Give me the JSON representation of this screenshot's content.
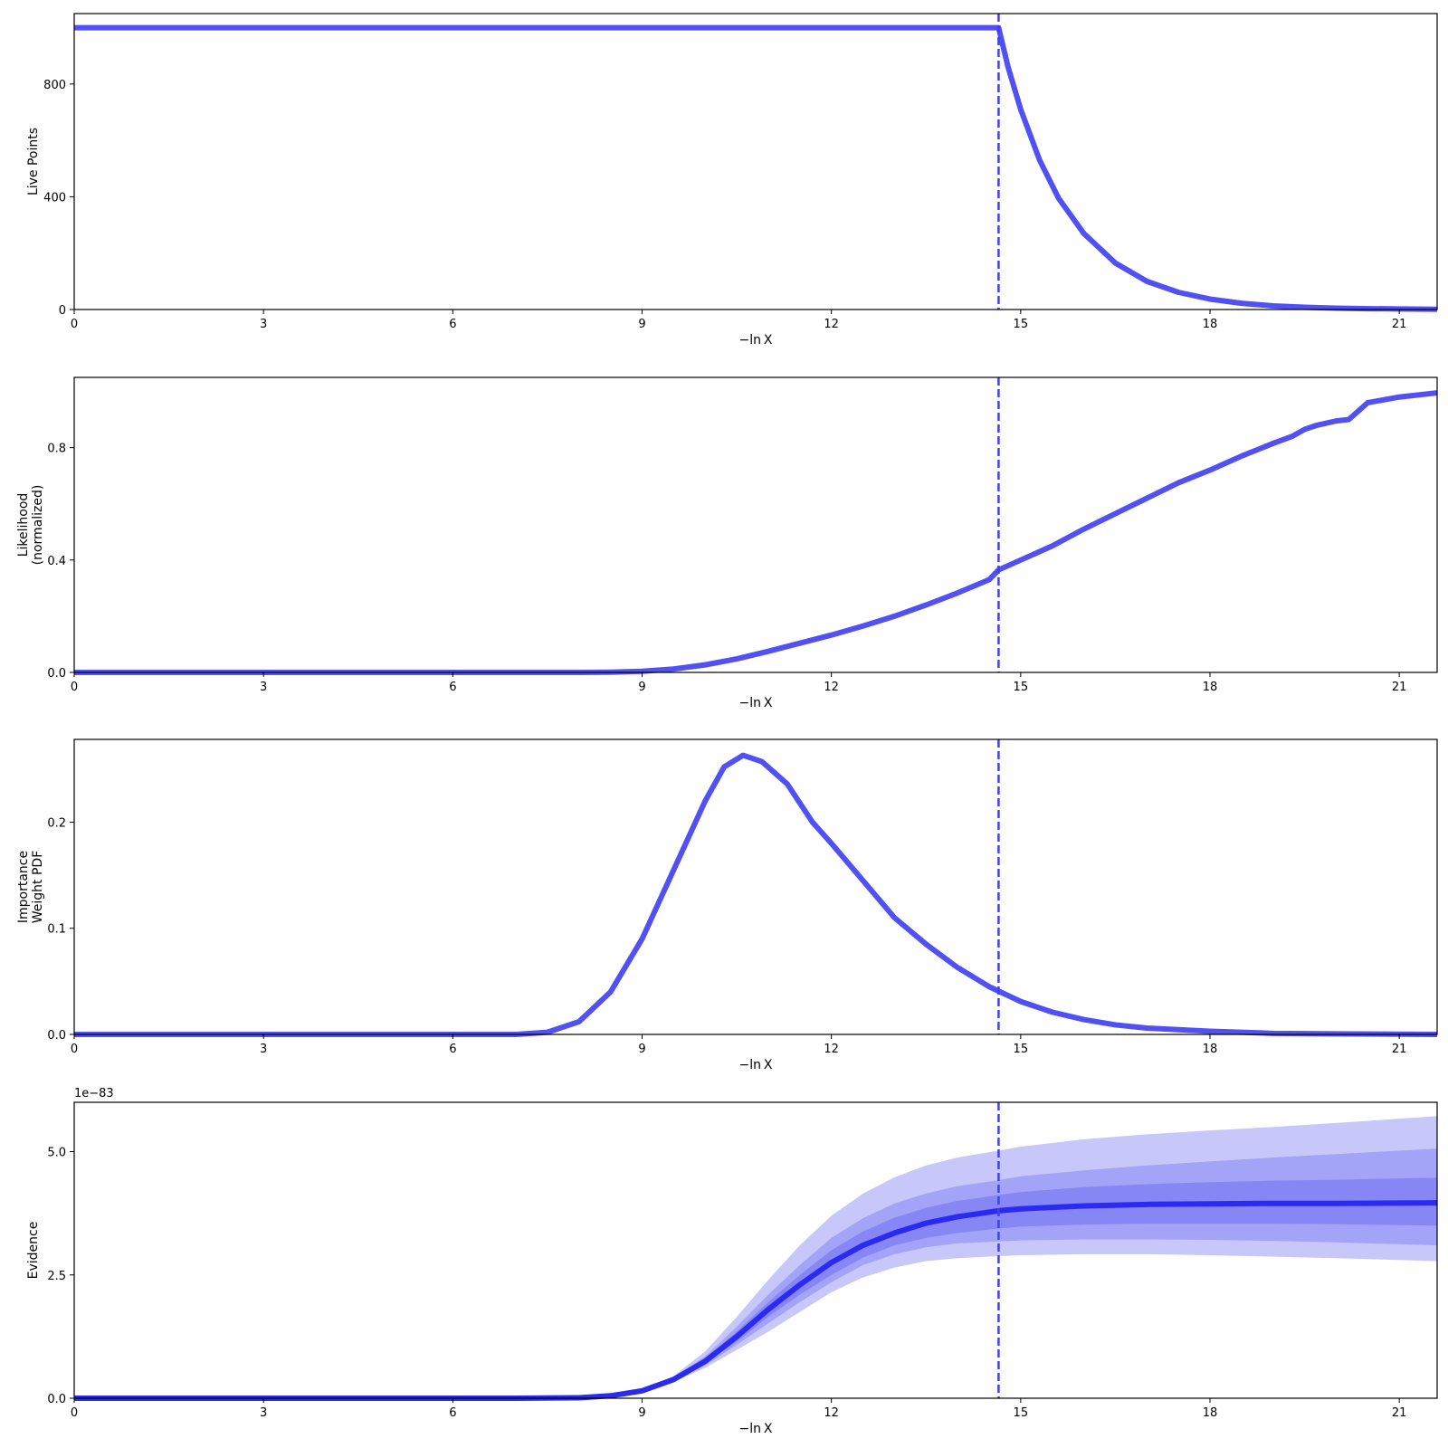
{
  "colors": {
    "line": "#5050f5",
    "vline": "#4040ee",
    "evidence_line": "#2a2af2",
    "band_1": "#c7c7fa",
    "band_2": "#a3a3f7",
    "band_3": "#8686f5"
  },
  "chart_data": [
    {
      "type": "line",
      "title": "",
      "xlabel": "−ln X",
      "ylabel": "Live Points",
      "xlim": [
        0,
        21.6
      ],
      "ylim": [
        0,
        1050
      ],
      "xticks": [
        0,
        3,
        6,
        9,
        12,
        15,
        18,
        21
      ],
      "xtick_labels": [
        "0",
        "3",
        "6",
        "9",
        "12",
        "15",
        "18",
        "21"
      ],
      "yticks": [
        0,
        400,
        800
      ],
      "ytick_labels": [
        "0",
        "400",
        "800"
      ],
      "vline_x": 14.65,
      "series": [
        {
          "x": [
            0,
            14.65,
            14.8,
            15.0,
            15.3,
            15.6,
            16.0,
            16.5,
            17.0,
            17.5,
            18.0,
            18.5,
            19.0,
            19.5,
            20.0,
            20.5,
            21.0,
            21.6
          ],
          "y": [
            1000,
            1000,
            860,
            710,
            530,
            395,
            270,
            165,
            100,
            61,
            37,
            22,
            13,
            8,
            5,
            3,
            2,
            1
          ]
        }
      ]
    },
    {
      "type": "line",
      "title": "",
      "xlabel": "−ln X",
      "ylabel": "Likelihood\n(normalized)",
      "xlim": [
        0,
        21.6
      ],
      "ylim": [
        0,
        1.05
      ],
      "xticks": [
        0,
        3,
        6,
        9,
        12,
        15,
        18,
        21
      ],
      "xtick_labels": [
        "0",
        "3",
        "6",
        "9",
        "12",
        "15",
        "18",
        "21"
      ],
      "yticks": [
        0,
        0.4,
        0.8
      ],
      "ytick_labels": [
        "0.0",
        "0.4",
        "0.8"
      ],
      "vline_x": 14.65,
      "series": [
        {
          "x": [
            0,
            8,
            8.5,
            9,
            9.5,
            10,
            10.5,
            11,
            11.5,
            12,
            12.5,
            13,
            13.5,
            14,
            14.5,
            14.65,
            15,
            15.5,
            16,
            16.5,
            17,
            17.5,
            18,
            18.5,
            19,
            19.3,
            19.5,
            19.7,
            20,
            20.2,
            20.5,
            21,
            21.6
          ],
          "y": [
            0,
            0,
            0.001,
            0.004,
            0.012,
            0.027,
            0.048,
            0.075,
            0.104,
            0.133,
            0.165,
            0.2,
            0.24,
            0.283,
            0.33,
            0.365,
            0.4,
            0.45,
            0.51,
            0.565,
            0.62,
            0.675,
            0.72,
            0.77,
            0.815,
            0.84,
            0.865,
            0.88,
            0.895,
            0.9,
            0.96,
            0.98,
            0.995
          ]
        }
      ]
    },
    {
      "type": "line",
      "title": "",
      "xlabel": "−ln X",
      "ylabel": "Importance\nWeight PDF",
      "xlim": [
        0,
        21.6
      ],
      "ylim": [
        0,
        0.278
      ],
      "xticks": [
        0,
        3,
        6,
        9,
        12,
        15,
        18,
        21
      ],
      "xtick_labels": [
        "0",
        "3",
        "6",
        "9",
        "12",
        "15",
        "18",
        "21"
      ],
      "yticks": [
        0,
        0.1,
        0.2
      ],
      "ytick_labels": [
        "0.0",
        "0.1",
        "0.2"
      ],
      "vline_x": 14.65,
      "series": [
        {
          "x": [
            0,
            7,
            7.5,
            8,
            8.5,
            9,
            9.5,
            10,
            10.3,
            10.6,
            10.9,
            11.3,
            11.7,
            12,
            12.5,
            13,
            13.5,
            14,
            14.5,
            15,
            15.5,
            16,
            16.5,
            17,
            18,
            19,
            20,
            21.6
          ],
          "y": [
            0,
            0,
            0.002,
            0.012,
            0.04,
            0.09,
            0.155,
            0.22,
            0.252,
            0.263,
            0.257,
            0.236,
            0.2,
            0.18,
            0.145,
            0.11,
            0.085,
            0.063,
            0.045,
            0.031,
            0.021,
            0.014,
            0.009,
            0.006,
            0.003,
            0.001,
            0.0005,
            0
          ]
        }
      ]
    },
    {
      "type": "area",
      "title": "",
      "xlabel": "−ln X",
      "ylabel": "Evidence",
      "scale_label": "1e−83",
      "xlim": [
        0,
        21.6
      ],
      "ylim": [
        0,
        6.0
      ],
      "xticks": [
        0,
        3,
        6,
        9,
        12,
        15,
        18,
        21
      ],
      "xtick_labels": [
        "0",
        "3",
        "6",
        "9",
        "12",
        "15",
        "18",
        "21"
      ],
      "yticks": [
        0,
        2.5,
        5.0
      ],
      "ytick_labels": [
        "0.0",
        "2.5",
        "5.0"
      ],
      "vline_x": 14.65,
      "x": [
        0,
        7,
        8,
        8.5,
        9,
        9.5,
        10,
        10.5,
        11,
        11.5,
        12,
        12.5,
        13,
        13.5,
        14,
        14.65,
        15,
        16,
        17,
        18,
        19,
        20,
        21.6
      ],
      "median": [
        0,
        0,
        0.01,
        0.05,
        0.15,
        0.38,
        0.75,
        1.25,
        1.8,
        2.3,
        2.75,
        3.1,
        3.35,
        3.55,
        3.68,
        3.8,
        3.84,
        3.9,
        3.93,
        3.94,
        3.95,
        3.95,
        3.96
      ],
      "bands": [
        {
          "upper": [
            0,
            0,
            0.01,
            0.06,
            0.18,
            0.45,
            0.95,
            1.65,
            2.4,
            3.1,
            3.7,
            4.15,
            4.48,
            4.72,
            4.88,
            5.02,
            5.1,
            5.25,
            5.35,
            5.43,
            5.5,
            5.58,
            5.72
          ],
          "lower": [
            0,
            0,
            0.01,
            0.04,
            0.13,
            0.33,
            0.62,
            0.98,
            1.35,
            1.75,
            2.15,
            2.45,
            2.65,
            2.78,
            2.84,
            2.88,
            2.9,
            2.92,
            2.92,
            2.9,
            2.87,
            2.84,
            2.78
          ]
        },
        {
          "upper": [
            0,
            0,
            0.01,
            0.055,
            0.17,
            0.42,
            0.85,
            1.45,
            2.1,
            2.7,
            3.25,
            3.65,
            3.95,
            4.15,
            4.3,
            4.42,
            4.5,
            4.62,
            4.72,
            4.8,
            4.88,
            4.95,
            5.06
          ],
          "lower": [
            0,
            0,
            0.01,
            0.045,
            0.14,
            0.35,
            0.67,
            1.08,
            1.52,
            1.95,
            2.35,
            2.7,
            2.92,
            3.06,
            3.14,
            3.18,
            3.2,
            3.22,
            3.22,
            3.21,
            3.19,
            3.16,
            3.1
          ]
        },
        {
          "upper": [
            0,
            0,
            0.01,
            0.052,
            0.16,
            0.4,
            0.8,
            1.35,
            1.95,
            2.5,
            3.0,
            3.38,
            3.66,
            3.86,
            4.0,
            4.12,
            4.18,
            4.28,
            4.34,
            4.38,
            4.41,
            4.43,
            4.47
          ],
          "lower": [
            0,
            0,
            0.01,
            0.048,
            0.145,
            0.36,
            0.7,
            1.15,
            1.65,
            2.1,
            2.5,
            2.85,
            3.1,
            3.25,
            3.35,
            3.44,
            3.48,
            3.52,
            3.54,
            3.54,
            3.54,
            3.53,
            3.5
          ]
        }
      ]
    }
  ]
}
